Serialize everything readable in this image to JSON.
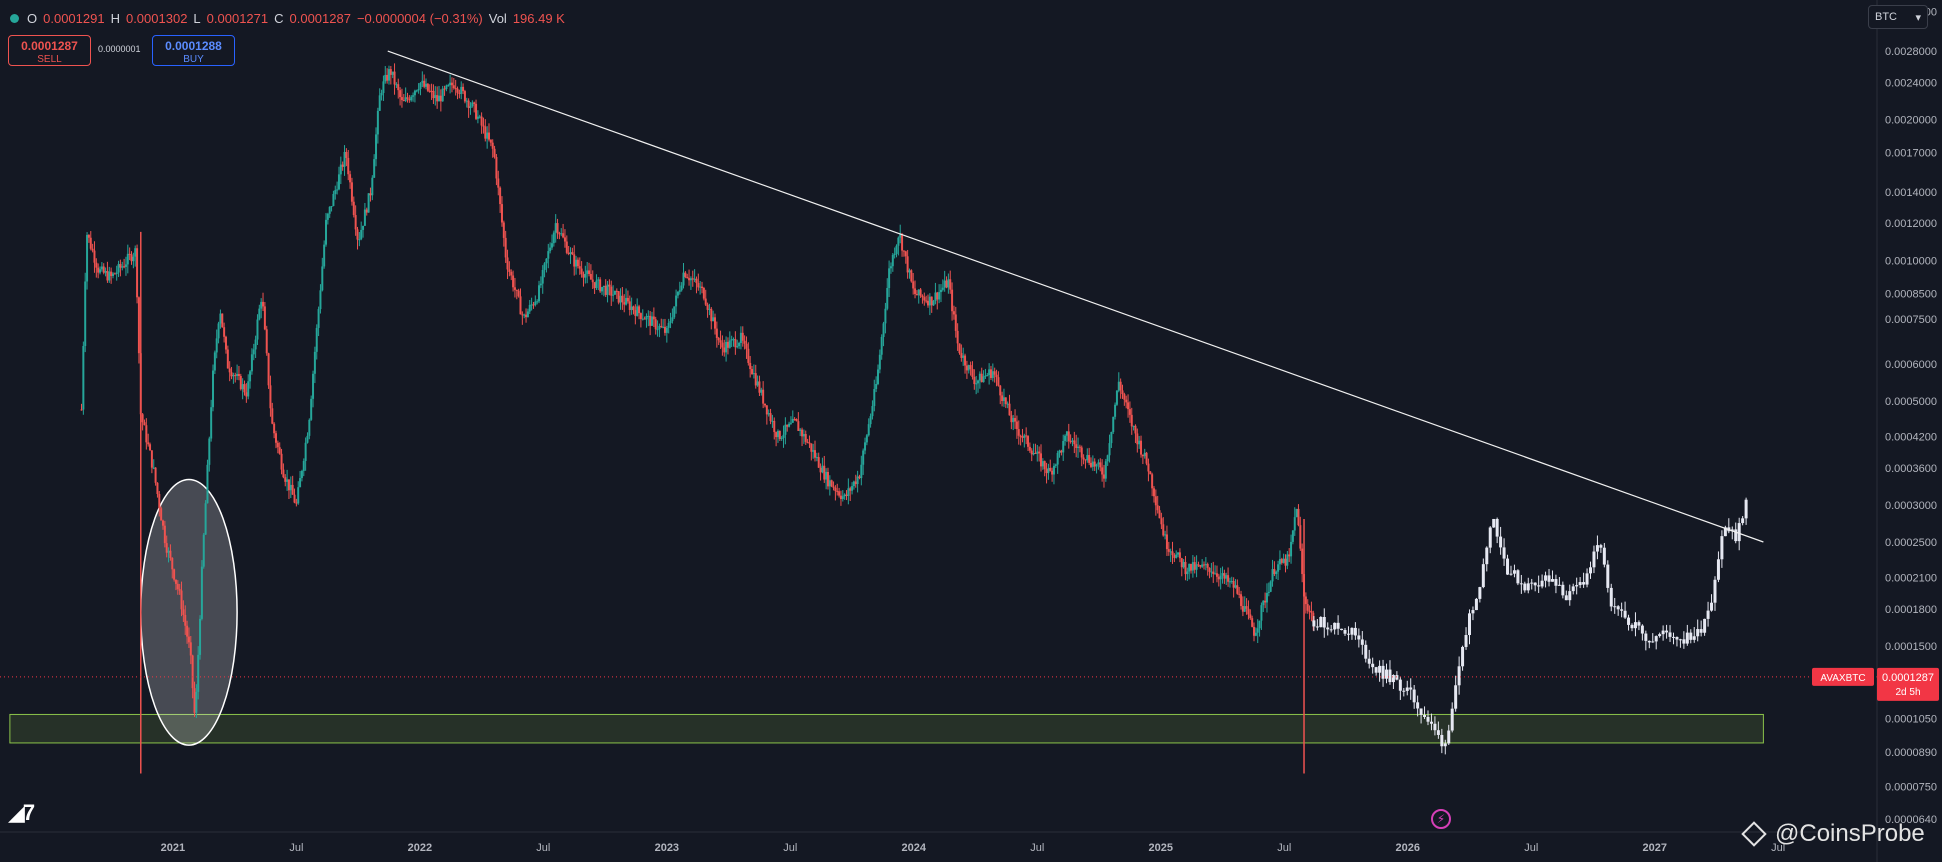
{
  "header": {
    "ohlc": [
      {
        "k": "O",
        "v": "0.0001291"
      },
      {
        "k": "H",
        "v": "0.0001302"
      },
      {
        "k": "L",
        "v": "0.0001271"
      },
      {
        "k": "C",
        "v": "0.0001287"
      },
      {
        "k": "",
        "v": "−0.0000004 (−0.31%)"
      },
      {
        "k": "Vol",
        "v": "196.49 K"
      }
    ],
    "sell_price": "0.0001287",
    "sell_label": "SELL",
    "buy_price": "0.0001288",
    "buy_label": "BUY",
    "spread": "0.0000001",
    "currency": "BTC"
  },
  "watermark": "@CoinsProbe",
  "colors": {
    "background": "#141823",
    "up": "#26a69a",
    "down": "#ef5350",
    "projection": "#e6e8f2",
    "trendline": "#f0f0f0",
    "support_zone": "#8bc34a",
    "price_tag": "#f23645"
  },
  "chart_data": {
    "type": "line",
    "symbol": "AVAXBTC",
    "last_price": "0.0001287",
    "countdown": "2d 5h",
    "y_scale": "log",
    "ylim": [
      6e-05,
      0.0036
    ],
    "xlim": [
      2020.3,
      2027.9
    ],
    "y_tick_labels": [
      "0.0034000",
      "0.0028000",
      "0.0024000",
      "0.0020000",
      "0.0017000",
      "0.0014000",
      "0.0012000",
      "0.0010000",
      "0.0008500",
      "0.0007500",
      "0.0006000",
      "0.0005000",
      "0.0004200",
      "0.0003600",
      "0.0003000",
      "0.0002500",
      "0.0002100",
      "0.0001800",
      "0.0001500",
      "0.0001050",
      "0.0000890",
      "0.0000750",
      "0.0000640"
    ],
    "x_tick_labels": [
      {
        "label": "2021",
        "t": 2021.0
      },
      {
        "label": "Jul",
        "t": 2021.5
      },
      {
        "label": "2022",
        "t": 2022.0
      },
      {
        "label": "Jul",
        "t": 2022.5
      },
      {
        "label": "2023",
        "t": 2023.0
      },
      {
        "label": "Jul",
        "t": 2023.5
      },
      {
        "label": "2024",
        "t": 2024.0
      },
      {
        "label": "Jul",
        "t": 2024.5
      },
      {
        "label": "2025",
        "t": 2025.0
      },
      {
        "label": "Jul",
        "t": 2025.5
      },
      {
        "label": "2026",
        "t": 2026.0
      },
      {
        "label": "Jul",
        "t": 2026.5
      },
      {
        "label": "2027",
        "t": 2027.0
      },
      {
        "label": "Jul",
        "t": 2027.5
      }
    ],
    "series": [
      {
        "style": "candles",
        "points": [
          [
            2020.63,
            0.00048
          ],
          [
            2020.65,
            0.00115
          ],
          [
            2020.7,
            0.00095
          ],
          [
            2020.75,
            0.00092
          ],
          [
            2020.8,
            0.00098
          ],
          [
            2020.85,
            0.00105
          ],
          [
            2020.87,
            0.00047
          ],
          [
            2020.92,
            0.00036
          ],
          [
            2020.97,
            0.00025
          ],
          [
            2021.03,
            0.00019
          ],
          [
            2021.07,
            0.000145
          ],
          [
            2021.09,
            0.000103
          ],
          [
            2021.12,
            0.00023
          ],
          [
            2021.16,
            0.00055
          ],
          [
            2021.19,
            0.0008
          ],
          [
            2021.22,
            0.0006
          ],
          [
            2021.3,
            0.00052
          ],
          [
            2021.36,
            0.00085
          ],
          [
            2021.4,
            0.00045
          ],
          [
            2021.45,
            0.00035
          ],
          [
            2021.5,
            0.0003
          ],
          [
            2021.55,
            0.00045
          ],
          [
            2021.62,
            0.0012
          ],
          [
            2021.7,
            0.0017
          ],
          [
            2021.75,
            0.0011
          ],
          [
            2021.8,
            0.0014
          ],
          [
            2021.84,
            0.0023
          ],
          [
            2021.88,
            0.00255
          ],
          [
            2021.93,
            0.00215
          ],
          [
            2022.0,
            0.0024
          ],
          [
            2022.07,
            0.0022
          ],
          [
            2022.14,
            0.0024
          ],
          [
            2022.22,
            0.0021
          ],
          [
            2022.3,
            0.0017
          ],
          [
            2022.35,
            0.001
          ],
          [
            2022.42,
            0.00075
          ],
          [
            2022.48,
            0.00085
          ],
          [
            2022.55,
            0.0012
          ],
          [
            2022.62,
            0.001
          ],
          [
            2022.7,
            0.0009
          ],
          [
            2022.78,
            0.00085
          ],
          [
            2022.85,
            0.0008
          ],
          [
            2022.92,
            0.00075
          ],
          [
            2023.0,
            0.0007
          ],
          [
            2023.07,
            0.00095
          ],
          [
            2023.15,
            0.00085
          ],
          [
            2023.22,
            0.00065
          ],
          [
            2023.3,
            0.00068
          ],
          [
            2023.38,
            0.00052
          ],
          [
            2023.45,
            0.00042
          ],
          [
            2023.52,
            0.00045
          ],
          [
            2023.58,
            0.0004
          ],
          [
            2023.65,
            0.00034
          ],
          [
            2023.72,
            0.00031
          ],
          [
            2023.78,
            0.00035
          ],
          [
            2023.85,
            0.00055
          ],
          [
            2023.9,
            0.00095
          ],
          [
            2023.94,
            0.00115
          ],
          [
            2024.0,
            0.00085
          ],
          [
            2024.07,
            0.00082
          ],
          [
            2024.14,
            0.0009
          ],
          [
            2024.18,
            0.00065
          ],
          [
            2024.25,
            0.00055
          ],
          [
            2024.32,
            0.00058
          ],
          [
            2024.4,
            0.00045
          ],
          [
            2024.47,
            0.0004
          ],
          [
            2024.55,
            0.00035
          ],
          [
            2024.62,
            0.00042
          ],
          [
            2024.7,
            0.00038
          ],
          [
            2024.77,
            0.00035
          ],
          [
            2024.83,
            0.00055
          ],
          [
            2024.88,
            0.00045
          ],
          [
            2024.95,
            0.00036
          ],
          [
            2025.02,
            0.00025
          ],
          [
            2025.1,
            0.00022
          ],
          [
            2025.2,
            0.00022
          ],
          [
            2025.3,
            0.0002
          ],
          [
            2025.38,
            0.00016
          ],
          [
            2025.46,
            0.00022
          ],
          [
            2025.52,
            0.00023
          ],
          [
            2025.55,
            0.0003
          ],
          [
            2025.58,
            0.00019
          ],
          [
            2025.62,
            0.00017
          ]
        ]
      },
      {
        "style": "projection",
        "points": [
          [
            2025.62,
            0.00017
          ],
          [
            2025.7,
            0.000165
          ],
          [
            2025.78,
            0.00016
          ],
          [
            2025.86,
            0.000135
          ],
          [
            2025.93,
            0.000128
          ],
          [
            2026.0,
            0.00012
          ],
          [
            2026.06,
            0.000108
          ],
          [
            2026.11,
            9.8e-05
          ],
          [
            2026.15,
            9.2e-05
          ],
          [
            2026.2,
            0.000125
          ],
          [
            2026.25,
            0.000175
          ],
          [
            2026.3,
            0.00021
          ],
          [
            2026.34,
            0.00029
          ],
          [
            2026.4,
            0.00022
          ],
          [
            2026.48,
            0.0002
          ],
          [
            2026.56,
            0.00021
          ],
          [
            2026.65,
            0.00019
          ],
          [
            2026.72,
            0.00021
          ],
          [
            2026.78,
            0.00025
          ],
          [
            2026.82,
            0.00018
          ],
          [
            2026.9,
            0.00017
          ],
          [
            2026.98,
            0.000155
          ],
          [
            2027.05,
            0.00016
          ],
          [
            2027.12,
            0.000155
          ],
          [
            2027.18,
            0.00016
          ],
          [
            2027.23,
            0.00019
          ],
          [
            2027.28,
            0.00027
          ],
          [
            2027.33,
            0.000255
          ],
          [
            2027.38,
            0.00032
          ]
        ]
      }
    ],
    "trendline": {
      "from": [
        2021.87,
        0.0028
      ],
      "to": [
        2027.44,
        0.00025
      ]
    },
    "support_zone": {
      "x0": 2020.34,
      "x1": 2027.44,
      "y_low": 9.3e-05,
      "y_high": 0.000107
    },
    "highlight_ellipse": {
      "x0": 2020.87,
      "x1": 2021.26,
      "y_low": 9.2e-05,
      "y_high": 0.00034
    },
    "vertical_markers": [
      {
        "t": 2020.87,
        "y_low": 8e-05,
        "y_high": 0.00115,
        "color": "down"
      },
      {
        "t": 2025.58,
        "y_low": 8e-05,
        "y_high": 0.00028,
        "color": "down"
      }
    ]
  }
}
